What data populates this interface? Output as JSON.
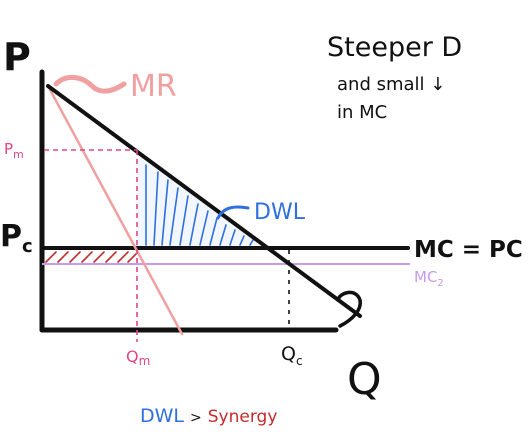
{
  "labels": {
    "p_axis": "P",
    "q_axis": "Q",
    "p_m": "P",
    "p_m_sub": "m",
    "p_c": "P",
    "p_c_sub": "c",
    "q_m": "Q",
    "q_m_sub": "m",
    "q_c": "Q",
    "q_c_sub": "c",
    "mr": "MR",
    "d": "D",
    "dwl": "DWL",
    "mc_pc": "MC = PC",
    "mc2": "MC",
    "mc2_sub": "2"
  },
  "notes": {
    "line1": "Steeper D",
    "line2": "and small ↓",
    "line3": "in MC"
  },
  "conclusion": {
    "dwl": "DWL",
    "gt": ">",
    "synergy": "Synergy"
  },
  "colors": {
    "ink": "#111111",
    "mr": "#f0a0a0",
    "pink": "#e0468a",
    "blue": "#2f6fe0",
    "red": "#c42b2b",
    "purple": "#c79be6"
  }
}
